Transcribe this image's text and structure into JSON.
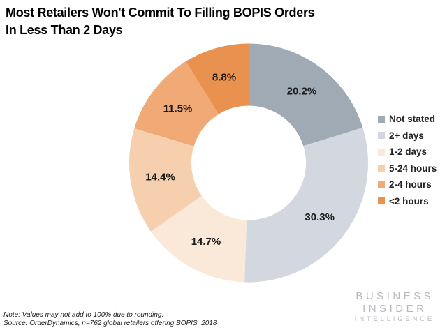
{
  "title": {
    "line1": "Most Retailers Won't Commit To Filling BOPIS Orders",
    "line2": "In Less Than 2 Days"
  },
  "chart_data": {
    "type": "pie",
    "style": "donut",
    "title": "Most Retailers Won't Commit To Filling BOPIS Orders In Less Than 2 Days",
    "categories": [
      "Not stated",
      "2+ days",
      "1-2 days",
      "5-24 hours",
      "2-4 hours",
      "<2 hours"
    ],
    "values": [
      20.2,
      30.3,
      14.7,
      14.4,
      11.5,
      8.8
    ],
    "labels": [
      "20.2%",
      "30.3%",
      "14.7%",
      "14.4%",
      "11.5%",
      "8.8%"
    ],
    "colors": [
      "#a0aab4",
      "#d3d8e0",
      "#fae8d9",
      "#f6cfae",
      "#f1aa75",
      "#e9914e"
    ],
    "start_angle_deg": 0,
    "direction": "clockwise",
    "inner_radius_ratio": 0.48,
    "legend_position": "right"
  },
  "notes": {
    "note": "Note: Values may not add to 100% due to rounding.",
    "source": "Source: OrderDynamics, n=762 global retailers offering BOPIS, 2018"
  },
  "logo": {
    "line1": "BUSINESS",
    "line2": "INSIDER",
    "line3": "INTELLIGENCE"
  }
}
